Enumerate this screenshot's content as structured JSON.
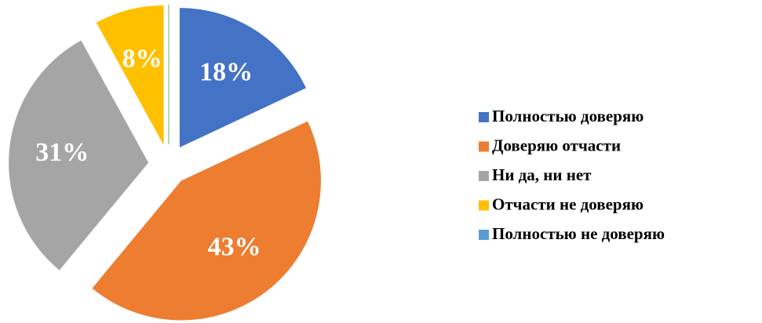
{
  "chart_data": {
    "type": "pie",
    "categories": [
      "Полностью доверяю",
      "Доверяю отчасти",
      "Ни да, ни нет",
      "Отчасти не доверяю",
      "Полностью не доверяю"
    ],
    "values": [
      18,
      43,
      31,
      8,
      0
    ],
    "value_labels": [
      "18%",
      "43%",
      "31%",
      "8%",
      null
    ],
    "colors": [
      "#4472c4",
      "#ed7d31",
      "#a5a5a5",
      "#ffc000",
      "#5b9bd5"
    ],
    "legend": "right"
  }
}
